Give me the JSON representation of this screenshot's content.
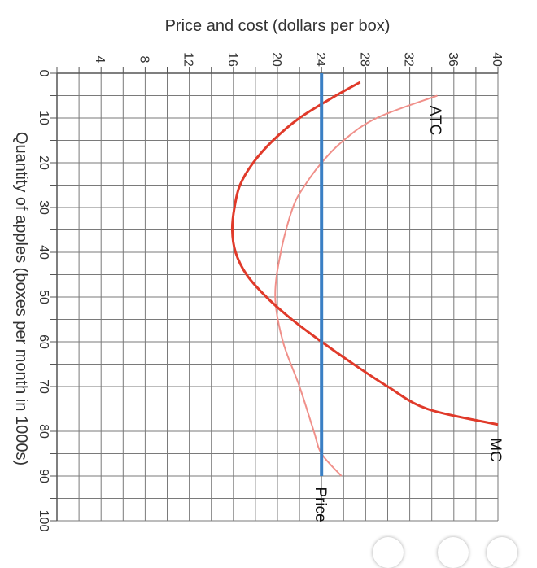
{
  "chart_data": {
    "type": "line",
    "orientation": "rotated-clockwise-90",
    "title": "",
    "xlabel": "Quantity of apples (boxes per month in 1000s)",
    "ylabel": "Price and cost (dollars per box)",
    "xlim": [
      0,
      100
    ],
    "ylim": [
      0,
      40
    ],
    "x_ticks": [
      "0",
      "10",
      "20",
      "30",
      "40",
      "50",
      "60",
      "70",
      "80",
      "90",
      "100"
    ],
    "y_ticks": [
      "4",
      "8",
      "12",
      "16",
      "20",
      "24",
      "28",
      "32",
      "36",
      "40"
    ],
    "grid": true,
    "series": [
      {
        "name": "MC",
        "color": "#e03a2a",
        "points": [
          [
            2,
            27.5
          ],
          [
            5,
            25.3
          ],
          [
            10,
            22.0
          ],
          [
            15,
            19.6
          ],
          [
            20,
            17.8
          ],
          [
            25,
            16.6
          ],
          [
            30,
            16.1
          ],
          [
            35,
            15.9
          ],
          [
            40,
            16.2
          ],
          [
            45,
            17.2
          ],
          [
            50,
            19.0
          ],
          [
            55,
            21.3
          ],
          [
            60,
            24.0
          ],
          [
            65,
            26.9
          ],
          [
            70,
            30.0
          ],
          [
            75,
            33.6
          ],
          [
            78.5,
            40.0
          ]
        ]
      },
      {
        "name": "ATC",
        "color": "#f0908a",
        "points": [
          [
            5,
            34.5
          ],
          [
            10,
            29.0
          ],
          [
            15,
            26.0
          ],
          [
            20,
            24.0
          ],
          [
            25,
            22.5
          ],
          [
            30,
            21.4
          ],
          [
            40,
            20.3
          ],
          [
            50,
            19.8
          ],
          [
            60,
            20.5
          ],
          [
            70,
            22.0
          ],
          [
            80,
            23.3
          ],
          [
            85,
            24.0
          ],
          [
            90,
            25.8
          ]
        ]
      },
      {
        "name": "Price",
        "color": "#3a7fc4",
        "points": [
          [
            0,
            24
          ],
          [
            90,
            24
          ]
        ]
      }
    ]
  }
}
